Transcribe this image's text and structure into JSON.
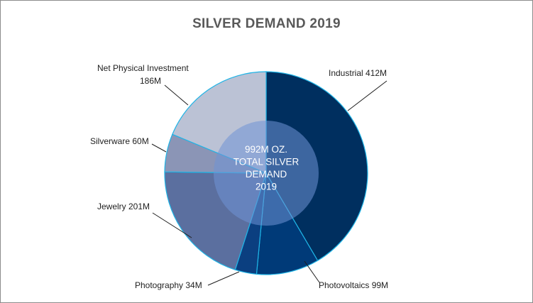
{
  "chart_data": {
    "type": "pie",
    "title": "SILVER DEMAND 2019",
    "center_label": [
      "992M OZ.",
      "TOTAL SILVER",
      "DEMAND",
      "2019"
    ],
    "slices": [
      {
        "label": "Industrial 412M",
        "value": 412,
        "color": "#002f5f"
      },
      {
        "label": "Photovoltaics 99M",
        "value": 99,
        "color": "#003a78"
      },
      {
        "label": "Photography 34M",
        "value": 34,
        "color": "#0b3f80"
      },
      {
        "label": "Jewelry 201M",
        "value": 201,
        "color": "#5b6f9f"
      },
      {
        "label": "Silverware 60M",
        "value": 60,
        "color": "#8b95b6"
      },
      {
        "label": "Net Physical Investment 186M",
        "value": 186,
        "color": "#bbc2d5"
      }
    ]
  }
}
